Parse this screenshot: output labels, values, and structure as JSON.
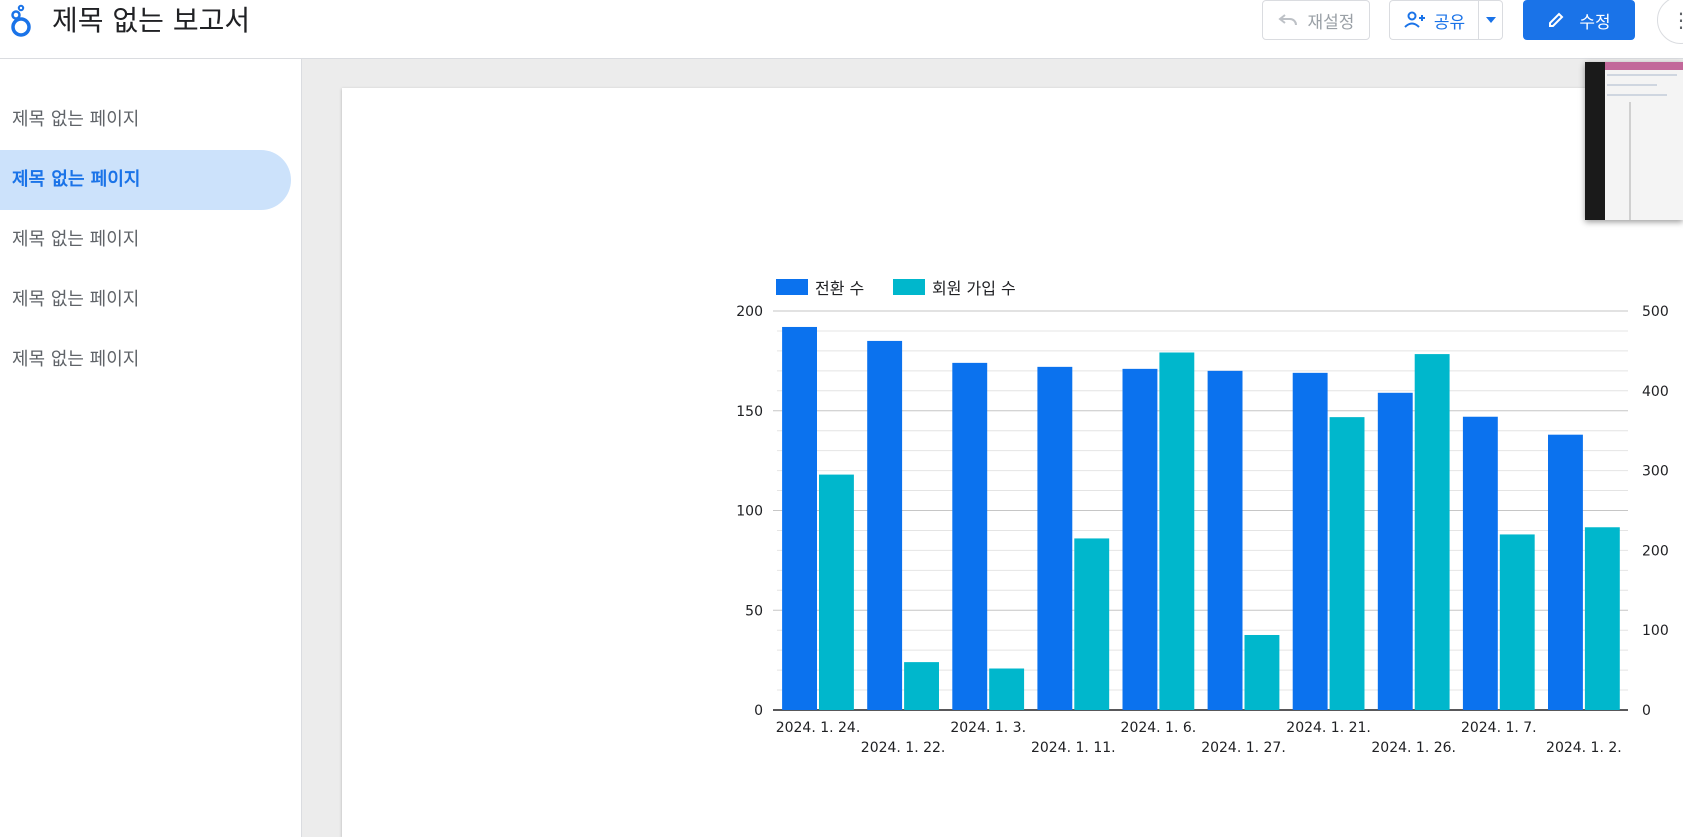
{
  "header": {
    "title": "제목 없는 보고서",
    "reset_label": "재설정",
    "share_label": "공유",
    "edit_label": "수정"
  },
  "sidebar": {
    "items": [
      {
        "label": "제목 없는 페이지",
        "active": false
      },
      {
        "label": "제목 없는 페이지",
        "active": true
      },
      {
        "label": "제목 없는 페이지",
        "active": false
      },
      {
        "label": "제목 없는 페이지",
        "active": false
      },
      {
        "label": "제목 없는 페이지",
        "active": false
      }
    ]
  },
  "colors": {
    "accent": "#1a73e8",
    "series1": "#0b72ee",
    "series2": "#00b7cc",
    "active_nav_bg": "#cce2fb"
  },
  "chart_data": {
    "type": "bar",
    "categories": [
      "2024. 1. 24.",
      "2024. 1. 22.",
      "2024. 1. 3.",
      "2024. 1. 11.",
      "2024. 1. 6.",
      "2024. 1. 27.",
      "2024. 1. 21.",
      "2024. 1. 26.",
      "2024. 1. 7.",
      "2024. 1. 2."
    ],
    "series": [
      {
        "name": "전환 수",
        "axis": "left",
        "values": [
          192,
          185,
          174,
          172,
          171,
          170,
          169,
          159,
          147,
          138
        ]
      },
      {
        "name": "회원 가입 수",
        "axis": "right",
        "values": [
          295,
          60,
          52,
          215,
          448,
          94,
          367,
          446,
          220,
          229
        ]
      }
    ],
    "y_left": {
      "min": 0,
      "max": 200,
      "ticks": [
        0,
        50,
        100,
        150,
        200
      ]
    },
    "y_right": {
      "min": 0,
      "max": 500,
      "ticks": [
        0,
        100,
        200,
        300,
        400,
        500
      ]
    },
    "legend_position": "top-left",
    "grid": true
  }
}
